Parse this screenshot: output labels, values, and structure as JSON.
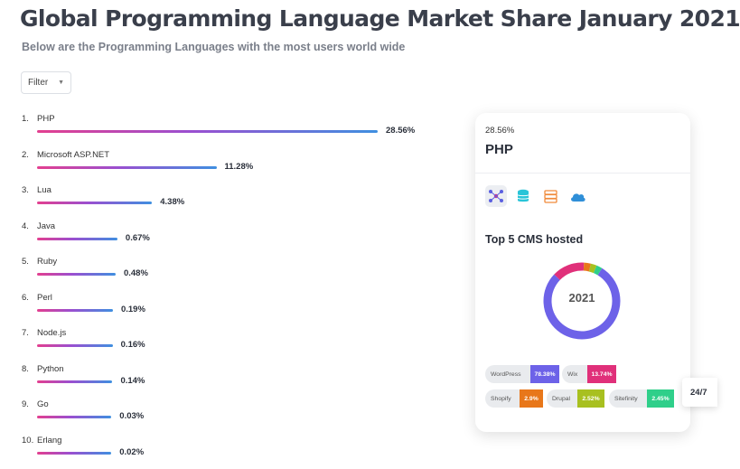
{
  "header": {
    "title": "Global Programming Language Market Share January 2021",
    "subtitle": "Below are the Programming Languages with the most users world wide"
  },
  "filter": {
    "label": "Filter"
  },
  "ranking": [
    {
      "num": "1.",
      "name": "PHP",
      "share": 28.56,
      "label": "28.56%"
    },
    {
      "num": "2.",
      "name": "Microsoft ASP.NET",
      "share": 11.28,
      "label": "11.28%"
    },
    {
      "num": "3.",
      "name": "Lua",
      "share": 4.38,
      "label": "4.38%"
    },
    {
      "num": "4.",
      "name": "Java",
      "share": 0.67,
      "label": "0.67%"
    },
    {
      "num": "5.",
      "name": "Ruby",
      "share": 0.48,
      "label": "0.48%"
    },
    {
      "num": "6.",
      "name": "Perl",
      "share": 0.19,
      "label": "0.19%"
    },
    {
      "num": "7.",
      "name": "Node.js",
      "share": 0.16,
      "label": "0.16%"
    },
    {
      "num": "8.",
      "name": "Python",
      "share": 0.14,
      "label": "0.14%"
    },
    {
      "num": "9.",
      "name": "Go",
      "share": 0.03,
      "label": "0.03%"
    },
    {
      "num": "10.",
      "name": "Erlang",
      "share": 0.02,
      "label": "0.02%"
    }
  ],
  "card": {
    "percent": "28.56%",
    "name": "PHP",
    "icons": [
      "network-icon",
      "database-icon",
      "server-icon",
      "cloud-icon"
    ],
    "cms_heading": "Top 5 CMS hosted",
    "donut_label": "2021",
    "cms": [
      {
        "name": "WordPress",
        "value": "78.38%",
        "share": 78.38,
        "color": "#6d62e8"
      },
      {
        "name": "Wix",
        "value": "13.74%",
        "share": 13.74,
        "color": "#e0307a"
      },
      {
        "name": "Shopify",
        "value": "2.9%",
        "share": 2.9,
        "color": "#e8771a"
      },
      {
        "name": "Drupal",
        "value": "2.52%",
        "share": 2.52,
        "color": "#a8c020"
      },
      {
        "name": "Sitefinity",
        "value": "2.45%",
        "share": 2.45,
        "color": "#2fcf8a"
      }
    ]
  },
  "side_badge": {
    "label": "24/7"
  }
}
